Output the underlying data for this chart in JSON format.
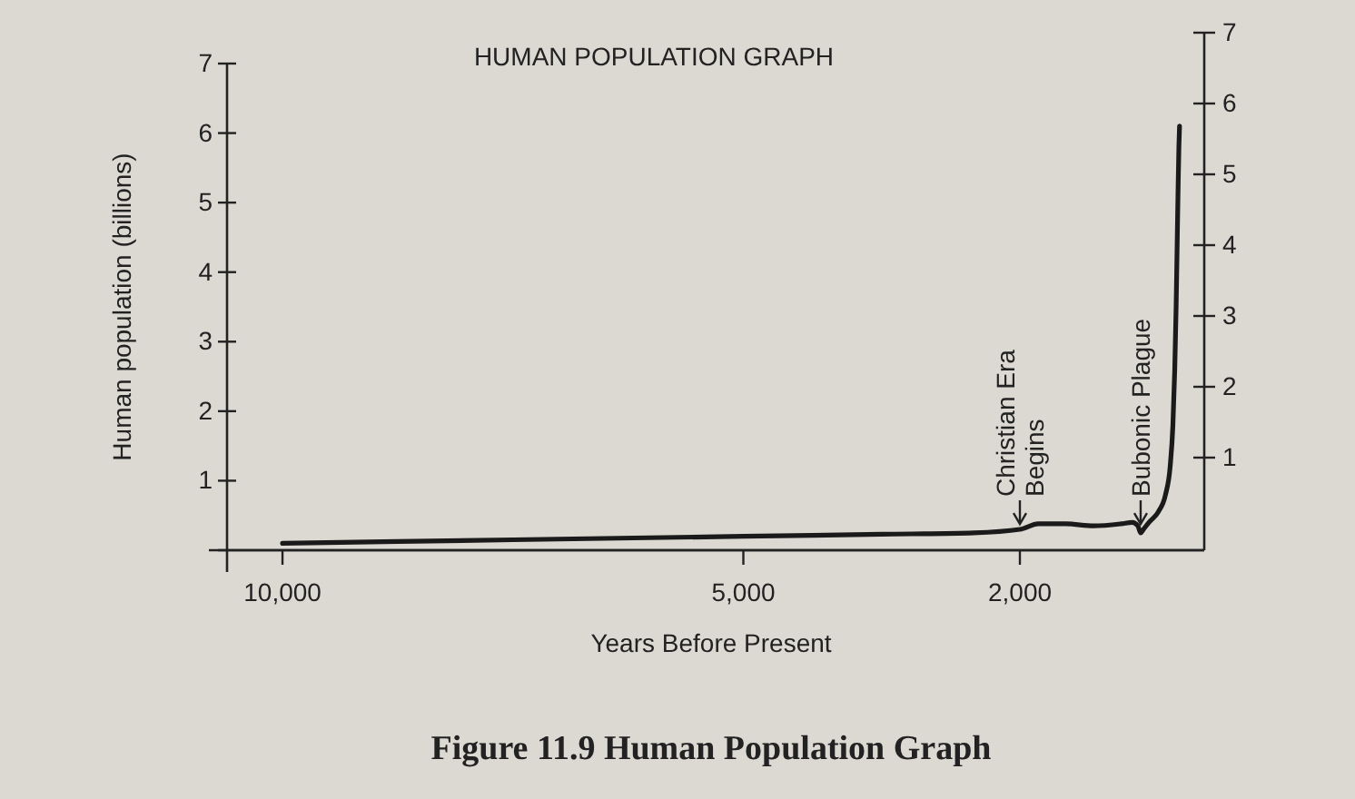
{
  "chart_data": {
    "type": "line",
    "title": "HUMAN POPULATION GRAPH",
    "xlabel": "Years Before Present",
    "ylabel": "Human population (billions)",
    "annotations": [
      {
        "text": "Christian Era Begins",
        "x": 2000,
        "y": 0.3
      },
      {
        "text": "Bubonic Plague",
        "x": 690,
        "y": 0.3
      },
      "Figure 11.9 Human Population Graph"
    ],
    "x": [
      10000,
      7500,
      5000,
      3500,
      2500,
      2000,
      1800,
      1500,
      1200,
      900,
      780,
      720,
      690,
      660,
      600,
      500,
      420,
      370,
      340,
      320,
      305,
      295,
      285,
      275,
      268
    ],
    "values": [
      0.1,
      0.15,
      0.2,
      0.23,
      0.25,
      0.3,
      0.38,
      0.38,
      0.35,
      0.38,
      0.4,
      0.35,
      0.25,
      0.3,
      0.4,
      0.55,
      0.8,
      1.2,
      1.8,
      2.6,
      3.5,
      4.3,
      5.1,
      5.8,
      6.1
    ],
    "color": "#1a1a1a",
    "xlim": [
      10700,
      0
    ],
    "xticks": [
      {
        "value": 10000,
        "label": "10,000"
      },
      {
        "value": 5000,
        "label": "5,000"
      },
      {
        "value": 2000,
        "label": "2,000"
      }
    ],
    "ylim": [
      0,
      7
    ],
    "yticks": [
      1,
      2,
      3,
      4,
      5,
      6,
      7
    ],
    "y2lim": [
      0,
      7
    ],
    "y2ticks": [
      1,
      2,
      3,
      4,
      5,
      6,
      7
    ]
  }
}
